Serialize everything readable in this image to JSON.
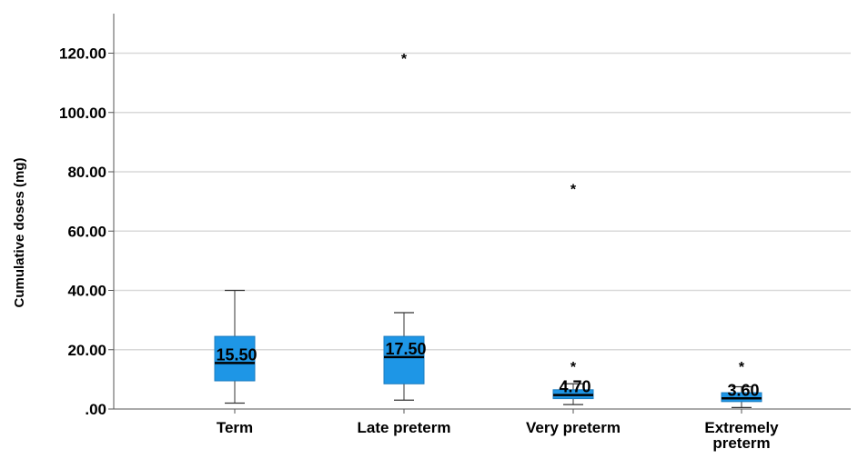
{
  "chart_data": {
    "type": "box",
    "title": "",
    "xlabel": "",
    "ylabel": "Cumulative doses (mg)",
    "ylim": [
      0,
      130
    ],
    "yticks": [
      {
        "value": 0,
        "label": ".00"
      },
      {
        "value": 20,
        "label": "20.00"
      },
      {
        "value": 40,
        "label": "40.00"
      },
      {
        "value": 60,
        "label": "60.00"
      },
      {
        "value": 80,
        "label": "80.00"
      },
      {
        "value": 100,
        "label": "100.00"
      },
      {
        "value": 120,
        "label": "120.00"
      }
    ],
    "grid": true,
    "box_color": "#1E96E6",
    "categories": [
      {
        "label_lines": [
          "Term"
        ],
        "median_label": "15.50",
        "min": 2.0,
        "q1": 9.5,
        "median": 15.5,
        "q3": 24.5,
        "max": 40.0,
        "outliers": []
      },
      {
        "label_lines": [
          "Late preterm"
        ],
        "median_label": "17.50",
        "min": 3.0,
        "q1": 8.5,
        "median": 17.5,
        "q3": 24.5,
        "max": 32.5,
        "outliers": [
          119.0
        ]
      },
      {
        "label_lines": [
          "Very preterm"
        ],
        "median_label": "4.70",
        "min": 1.5,
        "q1": 3.5,
        "median": 4.7,
        "q3": 6.5,
        "max": 8.5,
        "outliers": [
          75.0,
          15.0
        ]
      },
      {
        "label_lines": [
          "Extremely",
          "preterm"
        ],
        "median_label": "3.60",
        "min": 0.5,
        "q1": 2.5,
        "median": 3.6,
        "q3": 5.5,
        "max": 7.5,
        "outliers": [
          15.0
        ]
      }
    ]
  }
}
